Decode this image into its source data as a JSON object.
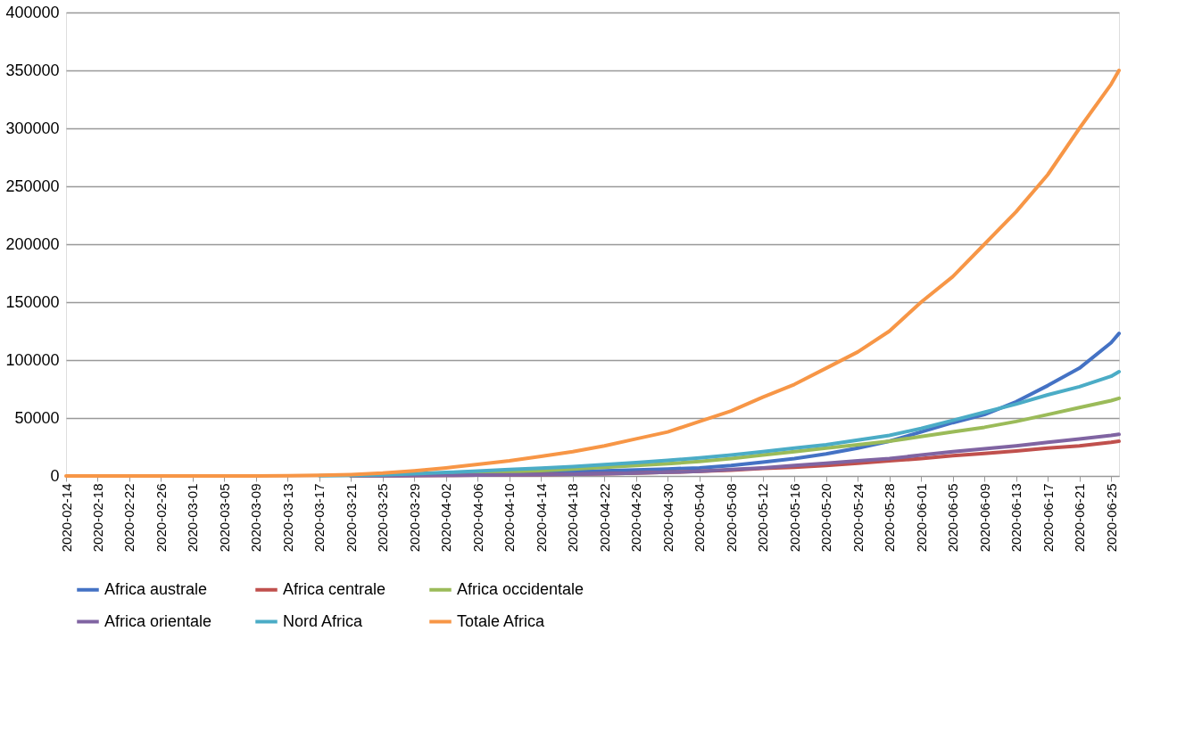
{
  "chart_data": {
    "type": "line",
    "x": [
      "2020-02-14",
      "2020-02-18",
      "2020-02-22",
      "2020-02-26",
      "2020-03-01",
      "2020-03-05",
      "2020-03-09",
      "2020-03-13",
      "2020-03-17",
      "2020-03-21",
      "2020-03-25",
      "2020-03-29",
      "2020-04-02",
      "2020-04-06",
      "2020-04-10",
      "2020-04-14",
      "2020-04-18",
      "2020-04-22",
      "2020-04-26",
      "2020-04-30",
      "2020-05-04",
      "2020-05-08",
      "2020-05-12",
      "2020-05-16",
      "2020-05-20",
      "2020-05-24",
      "2020-05-28",
      "2020-06-01",
      "2020-06-05",
      "2020-06-09",
      "2020-06-13",
      "2020-06-17",
      "2020-06-21",
      "2020-06-25",
      "2020-06-26"
    ],
    "xlim": [
      "2020-02-14",
      "2020-06-26"
    ],
    "xticks": [
      "2020-02-14",
      "2020-02-18",
      "2020-02-22",
      "2020-02-26",
      "2020-03-01",
      "2020-03-05",
      "2020-03-09",
      "2020-03-13",
      "2020-03-17",
      "2020-03-21",
      "2020-03-25",
      "2020-03-29",
      "2020-04-02",
      "2020-04-06",
      "2020-04-10",
      "2020-04-14",
      "2020-04-18",
      "2020-04-22",
      "2020-04-26",
      "2020-04-30",
      "2020-05-04",
      "2020-05-08",
      "2020-05-12",
      "2020-05-16",
      "2020-05-20",
      "2020-05-24",
      "2020-05-28",
      "2020-06-01",
      "2020-06-05",
      "2020-06-09",
      "2020-06-13",
      "2020-06-17",
      "2020-06-21",
      "2020-06-25"
    ],
    "ylim": [
      0,
      400000
    ],
    "yticks": [
      0,
      50000,
      100000,
      150000,
      200000,
      250000,
      300000,
      350000,
      400000
    ],
    "grid": "y",
    "legend": "bottom",
    "series": [
      {
        "name": "Africa australe",
        "color": "#4472c4",
        "values": [
          null,
          null,
          null,
          null,
          null,
          null,
          null,
          null,
          null,
          100,
          300,
          700,
          1500,
          2000,
          2500,
          3000,
          3600,
          4500,
          5200,
          6000,
          7000,
          9000,
          12000,
          15000,
          19000,
          24000,
          30000,
          38000,
          46000,
          53000,
          64000,
          78000,
          93000,
          115000,
          123000
        ]
      },
      {
        "name": "Africa centrale",
        "color": "#c0504d",
        "values": [
          null,
          null,
          null,
          null,
          null,
          null,
          null,
          null,
          null,
          100,
          200,
          300,
          500,
          700,
          1000,
          1200,
          1500,
          2000,
          2500,
          3200,
          4000,
          5000,
          6500,
          7500,
          9000,
          11000,
          13000,
          15000,
          17500,
          19500,
          21500,
          24000,
          26000,
          29000,
          30000
        ]
      },
      {
        "name": "Africa occidentale",
        "color": "#9bbb59",
        "values": [
          null,
          null,
          null,
          null,
          null,
          null,
          null,
          null,
          null,
          200,
          500,
          900,
          1500,
          2500,
          3500,
          4700,
          6000,
          7500,
          9000,
          10500,
          12500,
          15000,
          18000,
          21000,
          24000,
          27000,
          30000,
          34000,
          38000,
          42000,
          47000,
          53000,
          59000,
          65000,
          67000
        ]
      },
      {
        "name": "Africa orientale",
        "color": "#8064a2",
        "values": [
          null,
          null,
          null,
          null,
          null,
          null,
          null,
          null,
          null,
          100,
          200,
          300,
          500,
          700,
          1000,
          1200,
          1500,
          2000,
          2500,
          3200,
          4000,
          5500,
          7000,
          9000,
          11000,
          13000,
          15000,
          18000,
          21000,
          23500,
          26000,
          29000,
          32000,
          35000,
          36000
        ]
      },
      {
        "name": "Nord Africa",
        "color": "#4bacc6",
        "values": [
          null,
          null,
          null,
          null,
          null,
          null,
          null,
          null,
          200,
          500,
          1000,
          2000,
          3000,
          4200,
          5500,
          6800,
          8000,
          9800,
          11500,
          13500,
          15500,
          18000,
          21000,
          24000,
          27000,
          31000,
          35000,
          41000,
          48000,
          55000,
          62000,
          70000,
          77000,
          86000,
          90000
        ]
      },
      {
        "name": "Totale Africa",
        "color": "#f79646",
        "values": [
          0,
          0,
          0,
          0,
          0,
          0,
          0,
          100,
          500,
          1200,
          2500,
          4500,
          7000,
          10000,
          13000,
          17000,
          21000,
          26000,
          32000,
          38000,
          47000,
          56000,
          68000,
          79000,
          93000,
          107000,
          125000,
          150000,
          172000,
          200000,
          228000,
          260000,
          300000,
          338000,
          350000
        ]
      }
    ]
  }
}
